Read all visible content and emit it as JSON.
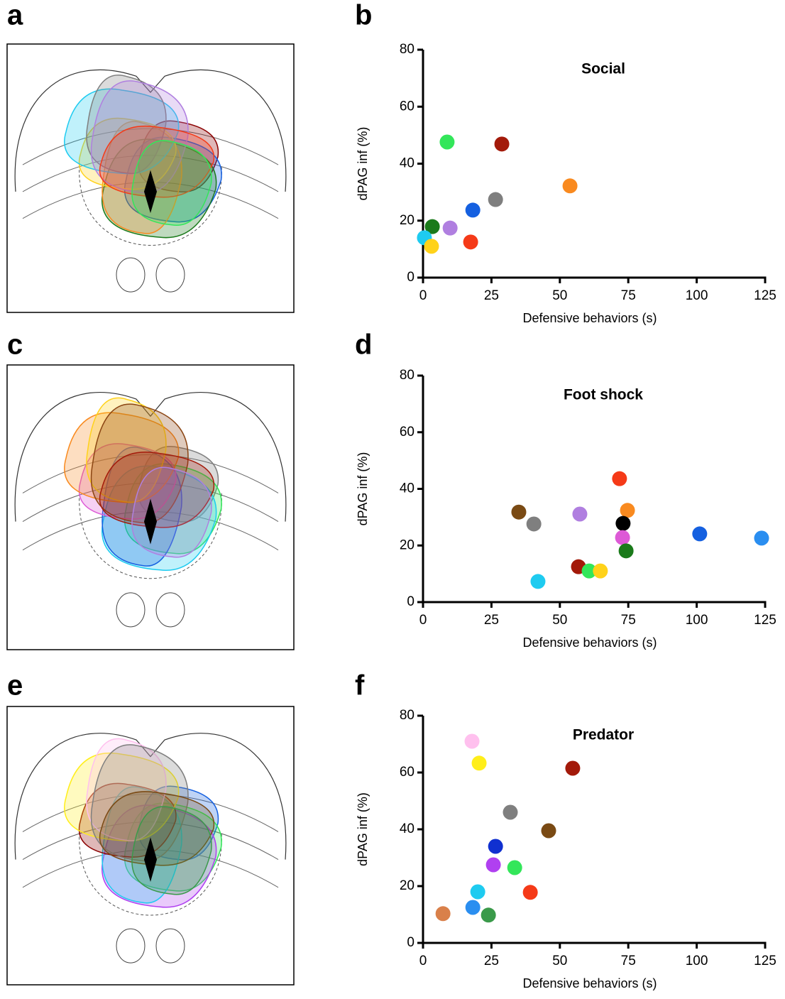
{
  "panel_labels": [
    "a",
    "b",
    "c",
    "d",
    "e",
    "f"
  ],
  "chart_data": [
    {
      "type": "scatter",
      "title": "Social",
      "x_label": "Defensive behaviors (s)",
      "y_label": "dPAG inf (%)",
      "x": [
        8.8,
        28.8,
        53.7,
        26.5,
        18.2,
        3.4,
        9.9,
        17.4,
        0.5,
        3.1
      ],
      "values": [
        47.6,
        46.9,
        32.2,
        27.4,
        23.7,
        17.9,
        17.4,
        12.5,
        14.0,
        11.0
      ],
      "colors": [
        "#33e65a",
        "#a31a0a",
        "#f98a1f",
        "#7f7f7f",
        "#1560e0",
        "#1a7a1a",
        "#b07fe0",
        "#f53a18",
        "#1ecbf0",
        "#ffd21a"
      ],
      "xlim": [
        0,
        125
      ],
      "ylim": [
        0,
        80
      ],
      "xticks": [
        0,
        25,
        50,
        75,
        100,
        125
      ],
      "yticks": [
        0,
        20,
        40,
        60,
        80
      ]
    },
    {
      "type": "scatter",
      "title": "Foot shock",
      "x_label": "Defensive behaviors (s)",
      "y_label": "dPAG inf (%)",
      "x": [
        71.8,
        35.0,
        40.5,
        57.3,
        74.7,
        73.1,
        72.9,
        74.2,
        101.1,
        123.7,
        56.8,
        60.7,
        64.8,
        42.0
      ],
      "values": [
        43.6,
        31.8,
        27.6,
        31.1,
        32.4,
        27.8,
        22.8,
        18.1,
        24.1,
        22.6,
        12.5,
        11.0,
        11.0,
        7.3
      ],
      "colors": [
        "#f53a18",
        "#7a4a14",
        "#7f7f7f",
        "#b07fe0",
        "#f98a1f",
        "#000000",
        "#dd5ad6",
        "#1a7a1a",
        "#1560e0",
        "#2a8ef0",
        "#a31a0a",
        "#33e65a",
        "#ffd21a",
        "#1ecbf0"
      ],
      "xlim": [
        0,
        125
      ],
      "ylim": [
        0,
        80
      ],
      "xticks": [
        0,
        25,
        50,
        75,
        100,
        125
      ],
      "yticks": [
        0,
        20,
        40,
        60,
        80
      ]
    },
    {
      "type": "scatter",
      "title": "Predator",
      "x_label": "Defensive behaviors (s)",
      "y_label": "dPAG inf (%)",
      "x": [
        17.9,
        20.5,
        54.7,
        31.9,
        45.9,
        26.5,
        25.7,
        33.5,
        39.2,
        20.0,
        18.2,
        23.9,
        7.3
      ],
      "values": [
        71.0,
        63.3,
        61.5,
        46.0,
        39.5,
        34.0,
        27.5,
        26.5,
        17.8,
        18.0,
        12.5,
        9.8,
        10.3
      ],
      "colors": [
        "#ffc0ee",
        "#ffee1a",
        "#a31a0a",
        "#7f7f7f",
        "#7a4a14",
        "#1030d0",
        "#b040f0",
        "#33e65a",
        "#f53a18",
        "#1ecbf0",
        "#2a8ef0",
        "#3a9a4a",
        "#d9804a"
      ],
      "xlim": [
        0,
        125
      ],
      "ylim": [
        0,
        80
      ],
      "xticks": [
        0,
        25,
        50,
        75,
        100,
        125
      ],
      "yticks": [
        0,
        20,
        40,
        60,
        80
      ]
    }
  ]
}
